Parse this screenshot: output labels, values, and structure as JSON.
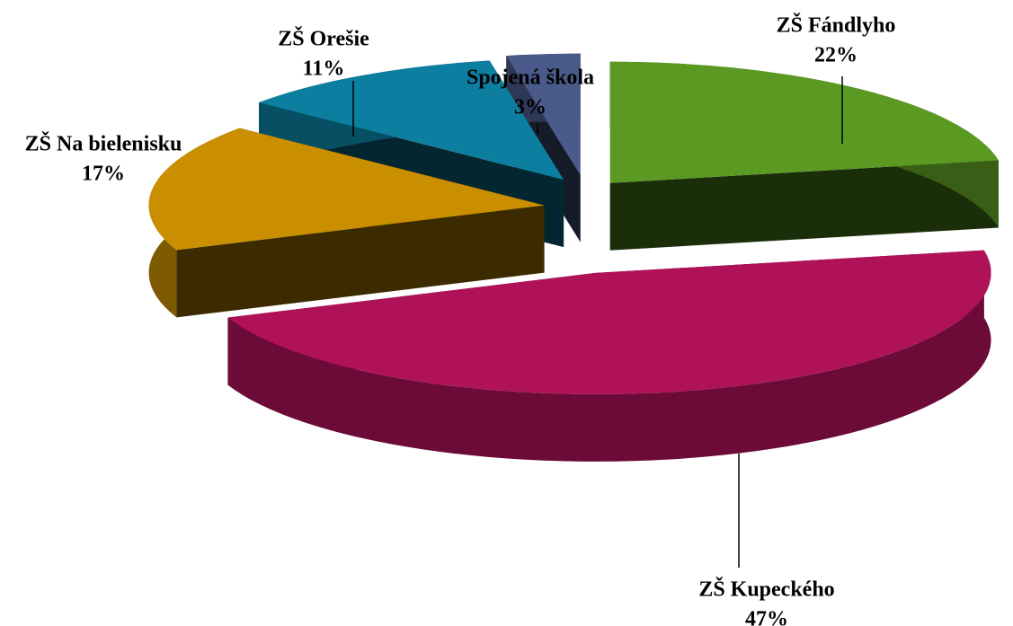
{
  "chart_data": {
    "type": "pie",
    "categories": [
      "ZŠ Fándlyho",
      "ZŠ Kupeckého",
      "ZŠ Na bielenisku",
      "ZŠ Orešie",
      "Spojená škola"
    ],
    "values": [
      22,
      47,
      17,
      11,
      3
    ],
    "value_labels": [
      "22%",
      "47%",
      "17%",
      "11%",
      "3%"
    ],
    "colors": [
      "#5a9a22",
      "#b0125a",
      "#c98f00",
      "#0c7fa0",
      "#4a5a8a"
    ]
  }
}
